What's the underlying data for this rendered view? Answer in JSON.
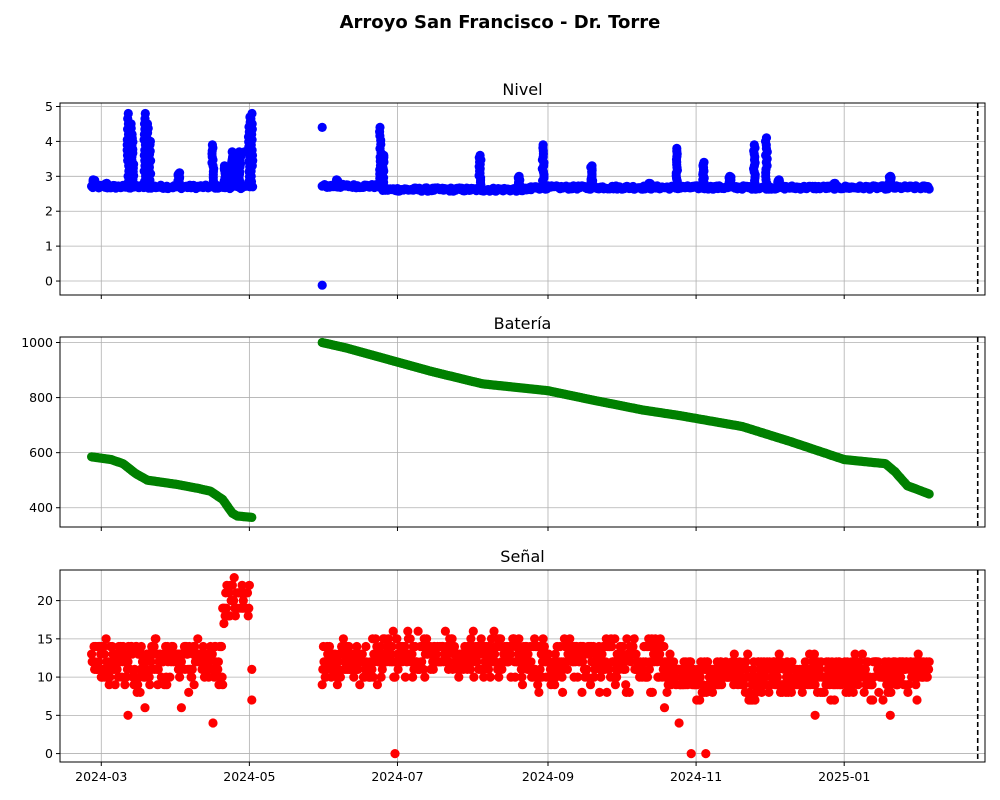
{
  "title": "Arroyo San Francisco - Dr. Torre",
  "chart_data": [
    {
      "type": "scatter",
      "title": "Nivel",
      "color": "#0000ff",
      "xlim": [
        "2024-02-13",
        "2025-02-28"
      ],
      "ylim": [
        -0.4,
        5.1
      ],
      "yticks": [
        0,
        1,
        2,
        3,
        4,
        5
      ],
      "grid": true,
      "vline": "2025-02-25",
      "baseline_segments": [
        {
          "from": "2024-02-26",
          "to": "2024-04-30",
          "y": 2.7
        },
        {
          "from": "2024-05-31",
          "to": "2024-06-25",
          "y": 2.72
        },
        {
          "from": "2024-06-25",
          "to": "2024-08-25",
          "y": 2.62
        },
        {
          "from": "2024-08-25",
          "to": "2025-02-05",
          "y": 2.68
        }
      ],
      "peaks": [
        [
          "2024-02-27",
          2.9
        ],
        [
          "2024-03-03",
          2.8
        ],
        [
          "2024-03-12",
          4.8
        ],
        [
          "2024-03-13",
          4.5
        ],
        [
          "2024-03-14",
          4.2
        ],
        [
          "2024-03-19",
          4.8
        ],
        [
          "2024-03-20",
          4.5
        ],
        [
          "2024-03-21",
          4.0
        ],
        [
          "2024-04-02",
          3.1
        ],
        [
          "2024-04-16",
          3.9
        ],
        [
          "2024-04-21",
          3.3
        ],
        [
          "2024-04-24",
          3.7
        ],
        [
          "2024-04-27",
          3.7
        ],
        [
          "2024-05-01",
          4.7
        ],
        [
          "2024-05-02",
          4.8
        ],
        [
          "2024-06-06",
          2.9
        ],
        [
          "2024-06-24",
          4.4
        ],
        [
          "2024-06-25",
          3.6
        ],
        [
          "2024-08-04",
          3.6
        ],
        [
          "2024-08-20",
          3.0
        ],
        [
          "2024-08-30",
          3.9
        ],
        [
          "2024-09-19",
          3.3
        ],
        [
          "2024-10-13",
          2.8
        ],
        [
          "2024-10-24",
          3.8
        ],
        [
          "2024-11-04",
          3.4
        ],
        [
          "2024-11-15",
          3.0
        ],
        [
          "2024-11-25",
          3.9
        ],
        [
          "2024-11-30",
          4.1
        ],
        [
          "2024-12-05",
          2.9
        ],
        [
          "2024-12-28",
          2.8
        ],
        [
          "2025-01-20",
          3.0
        ]
      ],
      "outliers": [
        [
          "2024-05-31",
          4.4
        ],
        [
          "2024-05-31",
          -0.12
        ],
        [
          "2024-04-29",
          3.7
        ]
      ]
    },
    {
      "type": "scatter",
      "title": "Batería",
      "color": "#008000",
      "xlim": [
        "2024-02-13",
        "2025-02-28"
      ],
      "ylim": [
        330,
        1020
      ],
      "yticks": [
        400,
        600,
        800,
        1000
      ],
      "grid": true,
      "vline": "2025-02-25",
      "series": [
        {
          "x": [
            "2024-02-26",
            "2024-03-05",
            "2024-03-10",
            "2024-03-15",
            "2024-03-20",
            "2024-04-01",
            "2024-04-10",
            "2024-04-15",
            "2024-04-20",
            "2024-04-24",
            "2024-04-26",
            "2024-05-02"
          ],
          "y": [
            585,
            575,
            560,
            525,
            500,
            485,
            470,
            460,
            430,
            380,
            370,
            365
          ]
        },
        {
          "x": [
            "2024-05-31",
            "2024-06-10",
            "2024-07-15",
            "2024-08-05",
            "2024-09-01",
            "2024-09-20",
            "2024-10-10",
            "2024-10-25",
            "2024-11-20",
            "2024-12-10",
            "2025-01-01",
            "2025-01-18",
            "2025-01-22",
            "2025-01-27",
            "2025-02-05"
          ],
          "y": [
            1000,
            980,
            895,
            850,
            825,
            790,
            755,
            735,
            695,
            640,
            575,
            560,
            530,
            480,
            450
          ]
        }
      ]
    },
    {
      "type": "scatter",
      "title": "Señal",
      "color": "#ff0000",
      "xlim": [
        "2024-02-13",
        "2025-02-28"
      ],
      "ylim": [
        -1.1,
        24
      ],
      "yticks": [
        0,
        5,
        10,
        15,
        20
      ],
      "grid": true,
      "vline": "2025-02-25",
      "xticks": [
        "2024-03-01",
        "2024-05-01",
        "2024-07-01",
        "2024-09-01",
        "2024-11-01",
        "2025-01-01"
      ],
      "xtick_labels": [
        "2024-03",
        "2024-05",
        "2024-07",
        "2024-09",
        "2024-11",
        "2025-01"
      ],
      "segments": [
        {
          "from": "2024-02-26",
          "to": "2024-04-20",
          "min": 8,
          "max": 15,
          "center": 12
        },
        {
          "from": "2024-04-20",
          "to": "2024-05-01",
          "min": 16,
          "max": 23,
          "center": 20
        },
        {
          "from": "2024-05-31",
          "to": "2024-06-25",
          "min": 9,
          "max": 15,
          "center": 12
        },
        {
          "from": "2024-06-25",
          "to": "2024-08-20",
          "min": 10,
          "max": 16,
          "center": 13
        },
        {
          "from": "2024-08-20",
          "to": "2024-10-20",
          "min": 8,
          "max": 15,
          "center": 12
        },
        {
          "from": "2024-10-20",
          "to": "2025-02-05",
          "min": 7,
          "max": 13,
          "center": 10.5
        }
      ],
      "outliers": [
        [
          "2024-03-12",
          5
        ],
        [
          "2024-03-19",
          6
        ],
        [
          "2024-04-03",
          6
        ],
        [
          "2024-04-16",
          4
        ],
        [
          "2024-05-02",
          7
        ],
        [
          "2024-05-02",
          11
        ],
        [
          "2024-06-30",
          0
        ],
        [
          "2024-10-30",
          0
        ],
        [
          "2024-11-05",
          0
        ],
        [
          "2024-10-19",
          6
        ],
        [
          "2024-10-25",
          4
        ],
        [
          "2024-12-20",
          5
        ],
        [
          "2024-12-28",
          7
        ],
        [
          "2025-01-20",
          5
        ],
        [
          "2024-09-15",
          8
        ]
      ]
    }
  ]
}
